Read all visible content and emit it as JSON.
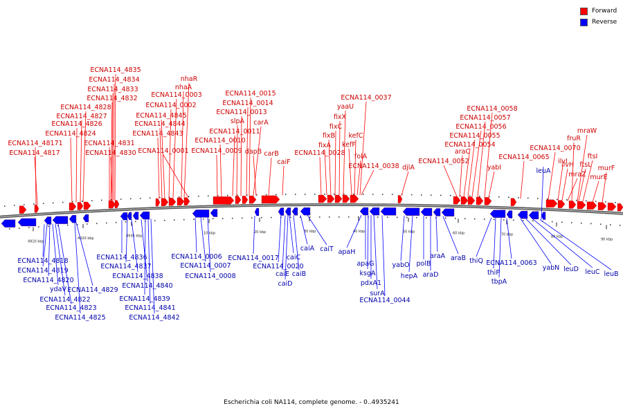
{
  "legend": {
    "forward_label": "Forward",
    "reverse_label": "Reverse",
    "forward_color": "#ff0000",
    "reverse_color": "#0000ff"
  },
  "caption": "Escherichia coli NA114, complete genome. - 0..4935241",
  "colors": {
    "forward": "#ff0000",
    "reverse": "#0000ff",
    "backbone": "#7a7a7a",
    "text_forward": "#cc0000",
    "text_reverse": "#0000aa"
  },
  "ticks": [
    "4910 kbp",
    "4920 kbp",
    "4930 kbp",
    "10 kbp",
    "20 kbp",
    "30 kbp",
    "40 kbp",
    "50 kbp",
    "60 kbp",
    "70 kbp",
    "80 kbp",
    "90 kbp"
  ],
  "forward_labels": [
    "ECNA114_48171",
    "ECNA114_4817",
    "ECNA114_4824",
    "ECNA114_4826",
    "ECNA114_4827",
    "ECNA114_4828",
    "ECNA114_4832",
    "ECNA114_4833",
    "ECNA114_4834",
    "ECNA114_4835",
    "ECNA114_4831",
    "ECNA114_4830",
    "ECNA114_4843",
    "ECNA114_4844",
    "ECNA114_4845",
    "ECNA114_0002",
    "ECNA114_0003",
    "nhaA",
    "nhaR",
    "ECNA114_0001",
    "ECNA114_0009",
    "ECNA114_0010",
    "ECNA114_0011",
    "slpA",
    "ECNA114_0013",
    "ECNA114_0014",
    "ECNA114_0015",
    "carA",
    "dapB",
    "carB",
    "caiF",
    "ECNA114_0028",
    "fixA",
    "fixB",
    "fixC",
    "fixX",
    "yaaU",
    "ECNA114_0037",
    "kefC",
    "kefF",
    "folA",
    "ECNA114_0038",
    "djlA",
    "ECNA114_0052",
    "araC",
    "ECNA114_0054",
    "ECNA114_0055",
    "ECNA114_0056",
    "ECNA114_0057",
    "ECNA114_0058",
    "yabI",
    "ECNA114_0065",
    "ECNA114_0070",
    "ilvI",
    "ilvH",
    "mraZ",
    "fruR",
    "ftsL",
    "ftsI",
    "mraW",
    "murE",
    "murF"
  ],
  "reverse_labels": [
    "ECNA114_4818",
    "ECNA114_4819",
    "ECNA114_4820",
    "ydaV",
    "ECNA114_4822",
    "ECNA114_4823",
    "ECNA114_4825",
    "ECNA114_4829",
    "ECNA114_4836",
    "ECNA114_4837",
    "ECNA114_4838",
    "ECNA114_4840",
    "ECNA114_4839",
    "ECNA114_4841",
    "ECNA114_4842",
    "ECNA114_0006",
    "ECNA114_0007",
    "ECNA114_0008",
    "ECNA114_0017",
    "ECNA114_0020",
    "caiE",
    "caiD",
    "caiC",
    "caiB",
    "caiA",
    "caiT",
    "apaH",
    "apaG",
    "ksgA",
    "pdxA1",
    "surA",
    "ECNA114_0044",
    "yabO",
    "hepA",
    "polB",
    "araD",
    "araA",
    "araB",
    "thiQ",
    "thiP",
    "tbpA",
    "ECNA114_0063",
    "leuA",
    "yabN",
    "leuD",
    "leuC",
    "leuB"
  ]
}
